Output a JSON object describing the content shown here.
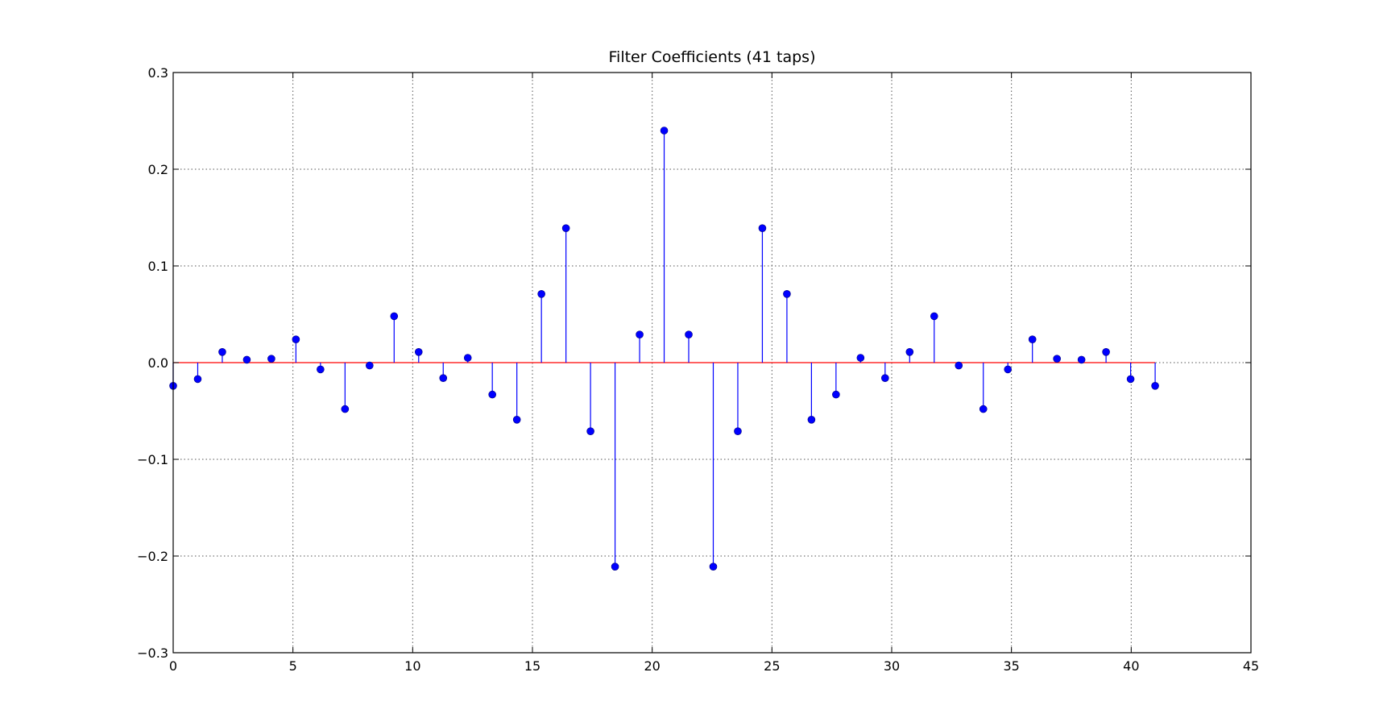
{
  "chart_data": {
    "type": "stem",
    "title": "Filter Coefficients (41 taps)",
    "xlabel": "",
    "ylabel": "",
    "xlim": [
      0,
      45
    ],
    "ylim": [
      -0.3,
      0.3
    ],
    "xticks": [
      0,
      5,
      10,
      15,
      20,
      25,
      30,
      35,
      40,
      45
    ],
    "xtick_labels": [
      "0",
      "5",
      "10",
      "15",
      "20",
      "25",
      "30",
      "35",
      "40",
      "45"
    ],
    "yticks": [
      -0.3,
      -0.2,
      -0.1,
      0.0,
      0.1,
      0.2,
      0.3
    ],
    "ytick_labels": [
      "−0.3",
      "−0.2",
      "−0.1",
      "0.0",
      "0.1",
      "0.2",
      "0.3"
    ],
    "grid": true,
    "x": [
      0,
      1.025,
      2.05,
      3.075,
      4.1,
      5.125,
      6.15,
      7.175,
      8.2,
      9.225,
      10.25,
      11.275,
      12.3,
      13.325,
      14.35,
      15.375,
      16.4,
      17.425,
      18.45,
      19.475,
      20.5,
      21.525,
      22.55,
      23.575,
      24.6,
      25.625,
      26.65,
      27.675,
      28.7,
      29.725,
      30.75,
      31.775,
      32.8,
      33.825,
      34.85,
      35.875,
      36.9,
      37.925,
      38.95,
      39.975,
      41.0
    ],
    "values": [
      -0.024,
      -0.017,
      0.011,
      0.003,
      0.004,
      0.024,
      -0.007,
      -0.048,
      -0.003,
      0.048,
      0.011,
      -0.016,
      0.005,
      -0.033,
      -0.059,
      0.071,
      0.139,
      -0.071,
      -0.211,
      0.029,
      0.24,
      0.029,
      -0.211,
      -0.071,
      0.139,
      0.071,
      -0.059,
      -0.033,
      0.005,
      -0.016,
      0.011,
      0.048,
      -0.003,
      -0.048,
      -0.007,
      0.024,
      0.004,
      0.003,
      0.011,
      -0.017,
      -0.024
    ],
    "colors": {
      "stem": "#0000ff",
      "marker": "#0000ff",
      "baseline": "#ff0000",
      "grid": "#555555",
      "frame": "#000000"
    }
  }
}
